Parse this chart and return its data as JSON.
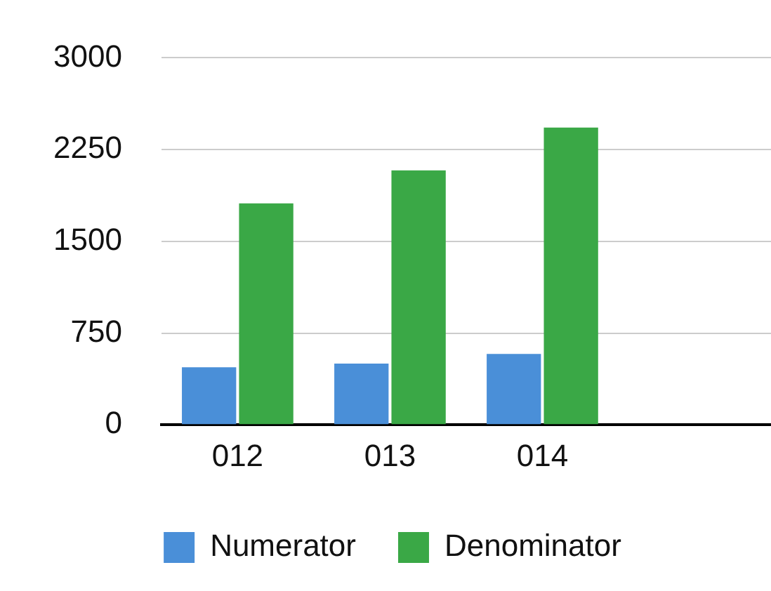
{
  "chart_data": {
    "type": "bar",
    "categories": [
      "012",
      "013",
      "014",
      null
    ],
    "series": [
      {
        "name": "Numerator",
        "color": "#4a8fd8",
        "values": [
          470,
          500,
          580,
          null
        ]
      },
      {
        "name": "Denominator",
        "color": "#3aa846",
        "values": [
          1810,
          2080,
          2430,
          null
        ]
      }
    ],
    "ylim": [
      0,
      3000
    ],
    "yticks": [
      0,
      750,
      1500,
      2250,
      3000
    ],
    "grid": "y",
    "legend": "bottom"
  }
}
